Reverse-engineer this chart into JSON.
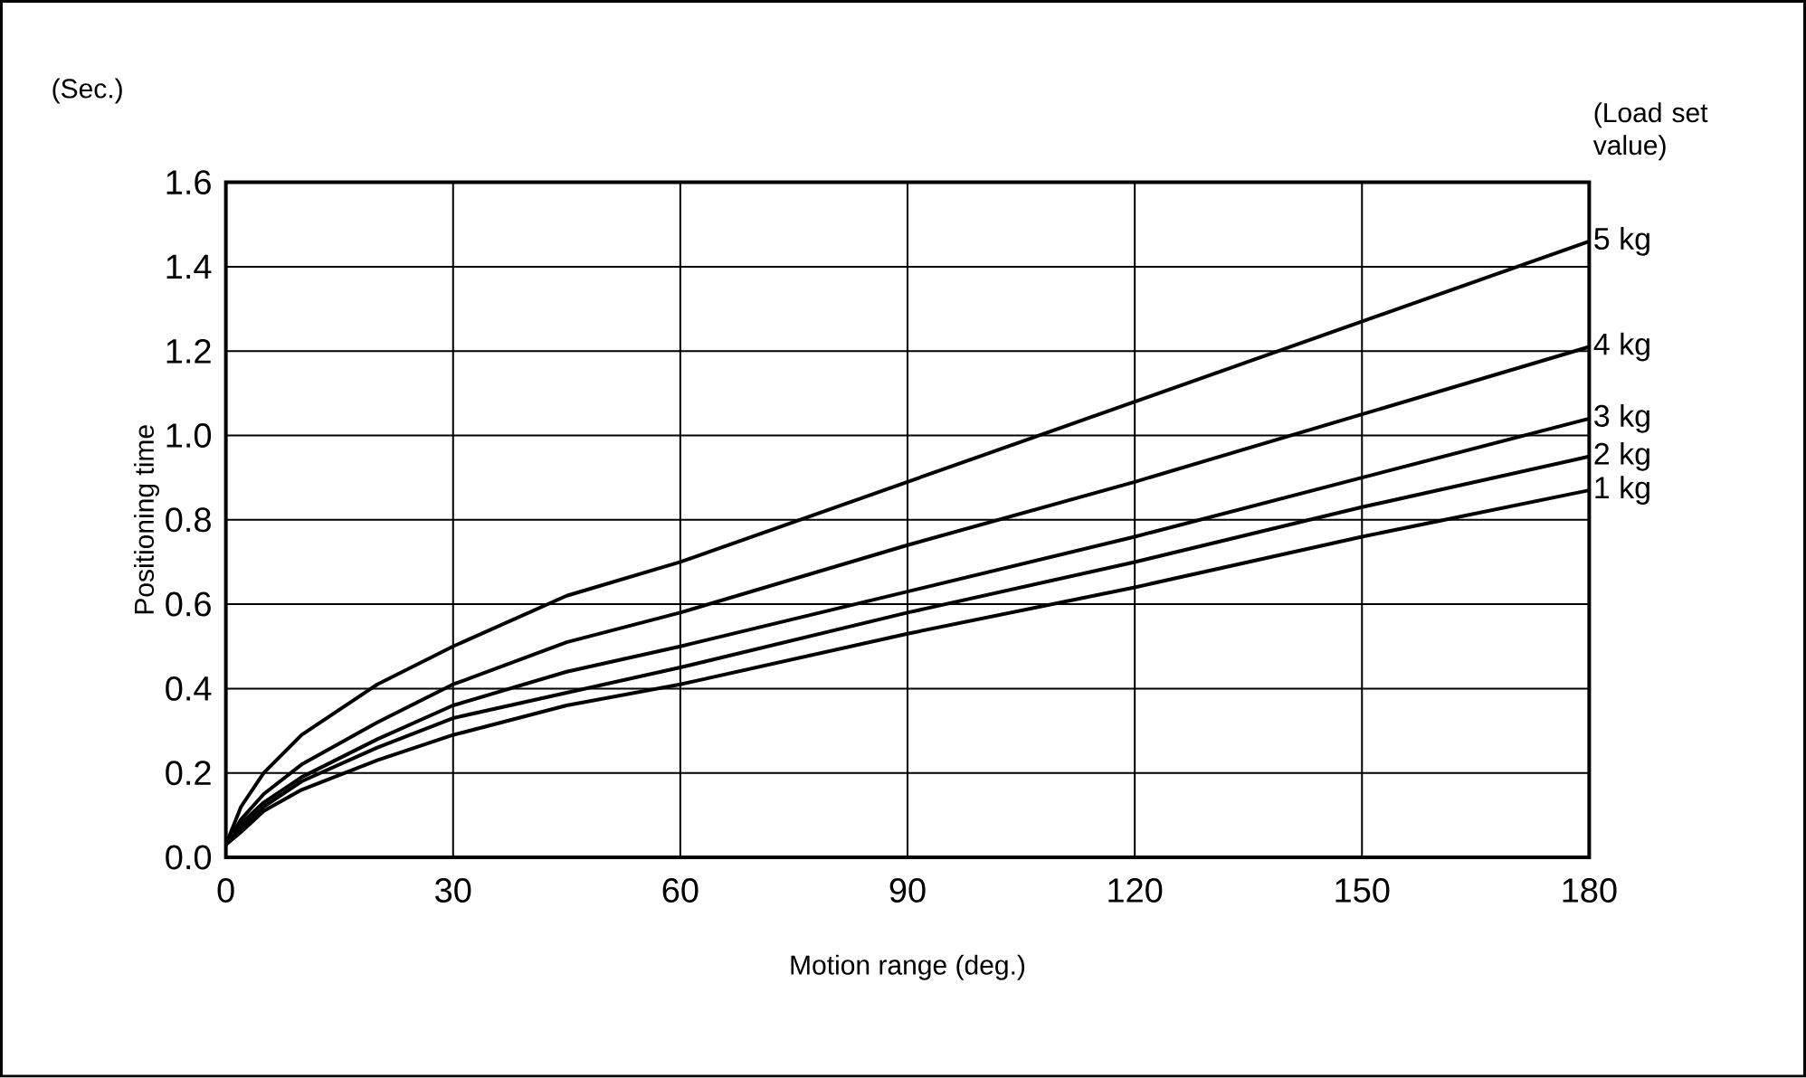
{
  "chart_data": {
    "type": "line",
    "xlabel": "Motion range (deg.)",
    "ylabel": "Positioning time",
    "legend_title": "(Load set value)",
    "annotations": [
      "(Sec.)"
    ],
    "x": [
      0,
      2,
      5,
      10,
      20,
      30,
      45,
      60,
      90,
      120,
      150,
      180
    ],
    "series": [
      {
        "name": "5 kg",
        "color": "#000000",
        "values": [
          0.03,
          0.12,
          0.2,
          0.29,
          0.41,
          0.5,
          0.62,
          0.7,
          0.89,
          1.08,
          1.27,
          1.46
        ]
      },
      {
        "name": "4 kg",
        "color": "#000000",
        "values": [
          0.03,
          0.09,
          0.15,
          0.22,
          0.32,
          0.41,
          0.51,
          0.58,
          0.74,
          0.89,
          1.05,
          1.21
        ]
      },
      {
        "name": "3 kg",
        "color": "#000000",
        "values": [
          0.03,
          0.08,
          0.13,
          0.19,
          0.28,
          0.36,
          0.44,
          0.5,
          0.63,
          0.76,
          0.9,
          1.04
        ]
      },
      {
        "name": "2 kg",
        "color": "#000000",
        "values": [
          0.03,
          0.07,
          0.12,
          0.18,
          0.26,
          0.33,
          0.39,
          0.45,
          0.58,
          0.7,
          0.83,
          0.95
        ]
      },
      {
        "name": "1 kg",
        "color": "#000000",
        "values": [
          0.03,
          0.06,
          0.11,
          0.16,
          0.23,
          0.29,
          0.36,
          0.41,
          0.53,
          0.64,
          0.76,
          0.87
        ]
      }
    ],
    "xlim": [
      0,
      180
    ],
    "ylim": [
      0,
      1.6
    ],
    "xticks": [
      0,
      30,
      60,
      90,
      120,
      150,
      180
    ],
    "yticks": [
      {
        "value": 0,
        "label": "0.0"
      },
      {
        "value": 0.2,
        "label": "0.2"
      },
      {
        "value": 0.4,
        "label": "0.4"
      },
      {
        "value": 0.6,
        "label": "0.6"
      },
      {
        "value": 0.8,
        "label": "0.8"
      },
      {
        "value": 1.0,
        "label": "1.0"
      },
      {
        "value": 1.2,
        "label": "1.2"
      },
      {
        "value": 1.4,
        "label": "1.4"
      },
      {
        "value": 1.6,
        "label": "1.6"
      }
    ],
    "grid": true,
    "line_style": "solid"
  }
}
